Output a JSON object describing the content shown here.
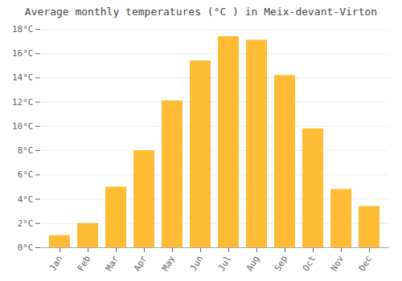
{
  "chart_data": {
    "type": "bar",
    "title": "Average monthly temperatures (°C ) in Meix-devant-Virton",
    "categories": [
      "Jan",
      "Feb",
      "Mar",
      "Apr",
      "May",
      "Jun",
      "Jul",
      "Aug",
      "Sep",
      "Oct",
      "Nov",
      "Dec"
    ],
    "values": [
      1.0,
      2.0,
      5.0,
      8.0,
      12.1,
      15.4,
      17.4,
      17.1,
      14.2,
      9.8,
      4.8,
      3.4
    ],
    "color": "#FFBB33",
    "ylim": [
      0,
      18
    ],
    "yticks": [
      {
        "value": 0,
        "label": "0°C"
      },
      {
        "value": 2,
        "label": "2°C"
      },
      {
        "value": 4,
        "label": "4°C"
      },
      {
        "value": 6,
        "label": "6°C"
      },
      {
        "value": 8,
        "label": "8°C"
      },
      {
        "value": 10,
        "label": "10°C"
      },
      {
        "value": 12,
        "label": "12°C"
      },
      {
        "value": 14,
        "label": "14°C"
      },
      {
        "value": 16,
        "label": "16°C"
      },
      {
        "value": 18,
        "label": "18°C"
      }
    ],
    "grid": true
  }
}
